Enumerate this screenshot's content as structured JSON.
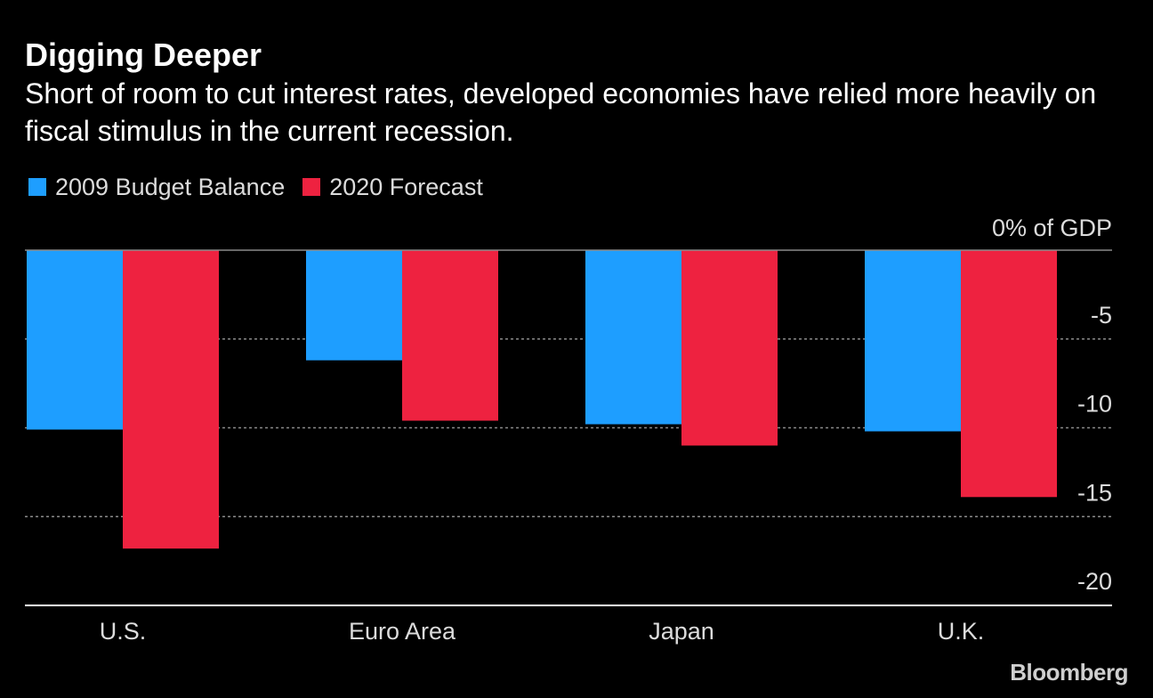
{
  "title": "Digging Deeper",
  "subtitle": "Short of room to cut interest rates, developed economies have relied more heavily on fiscal stimulus in the current recession.",
  "brand": "Bloomberg",
  "colors": {
    "background": "#000000",
    "series_2009": "#1e9eff",
    "series_2020": "#ee2240",
    "zero_line": "#8a8a8a",
    "grid": "#8a8a8a",
    "axis_text": "#dcdcdc"
  },
  "chart_data": {
    "type": "bar",
    "categories": [
      "U.S.",
      "Euro Area",
      "Japan",
      "U.K."
    ],
    "series": [
      {
        "name": "2009 Budget Balance",
        "values": [
          -10.1,
          -6.2,
          -9.8,
          -10.2
        ]
      },
      {
        "name": "2020 Forecast",
        "values": [
          -16.8,
          -9.6,
          -11.0,
          -13.9
        ]
      }
    ],
    "y_unit_label": "0% of GDP",
    "y_ticks": [
      {
        "value": -5,
        "label": "-5"
      },
      {
        "value": -10,
        "label": "-10"
      },
      {
        "value": -15,
        "label": "-15"
      },
      {
        "value": -20,
        "label": "-20"
      }
    ],
    "ylim": [
      -20,
      0
    ],
    "grid": "dotted",
    "legend_position": "top-left"
  }
}
